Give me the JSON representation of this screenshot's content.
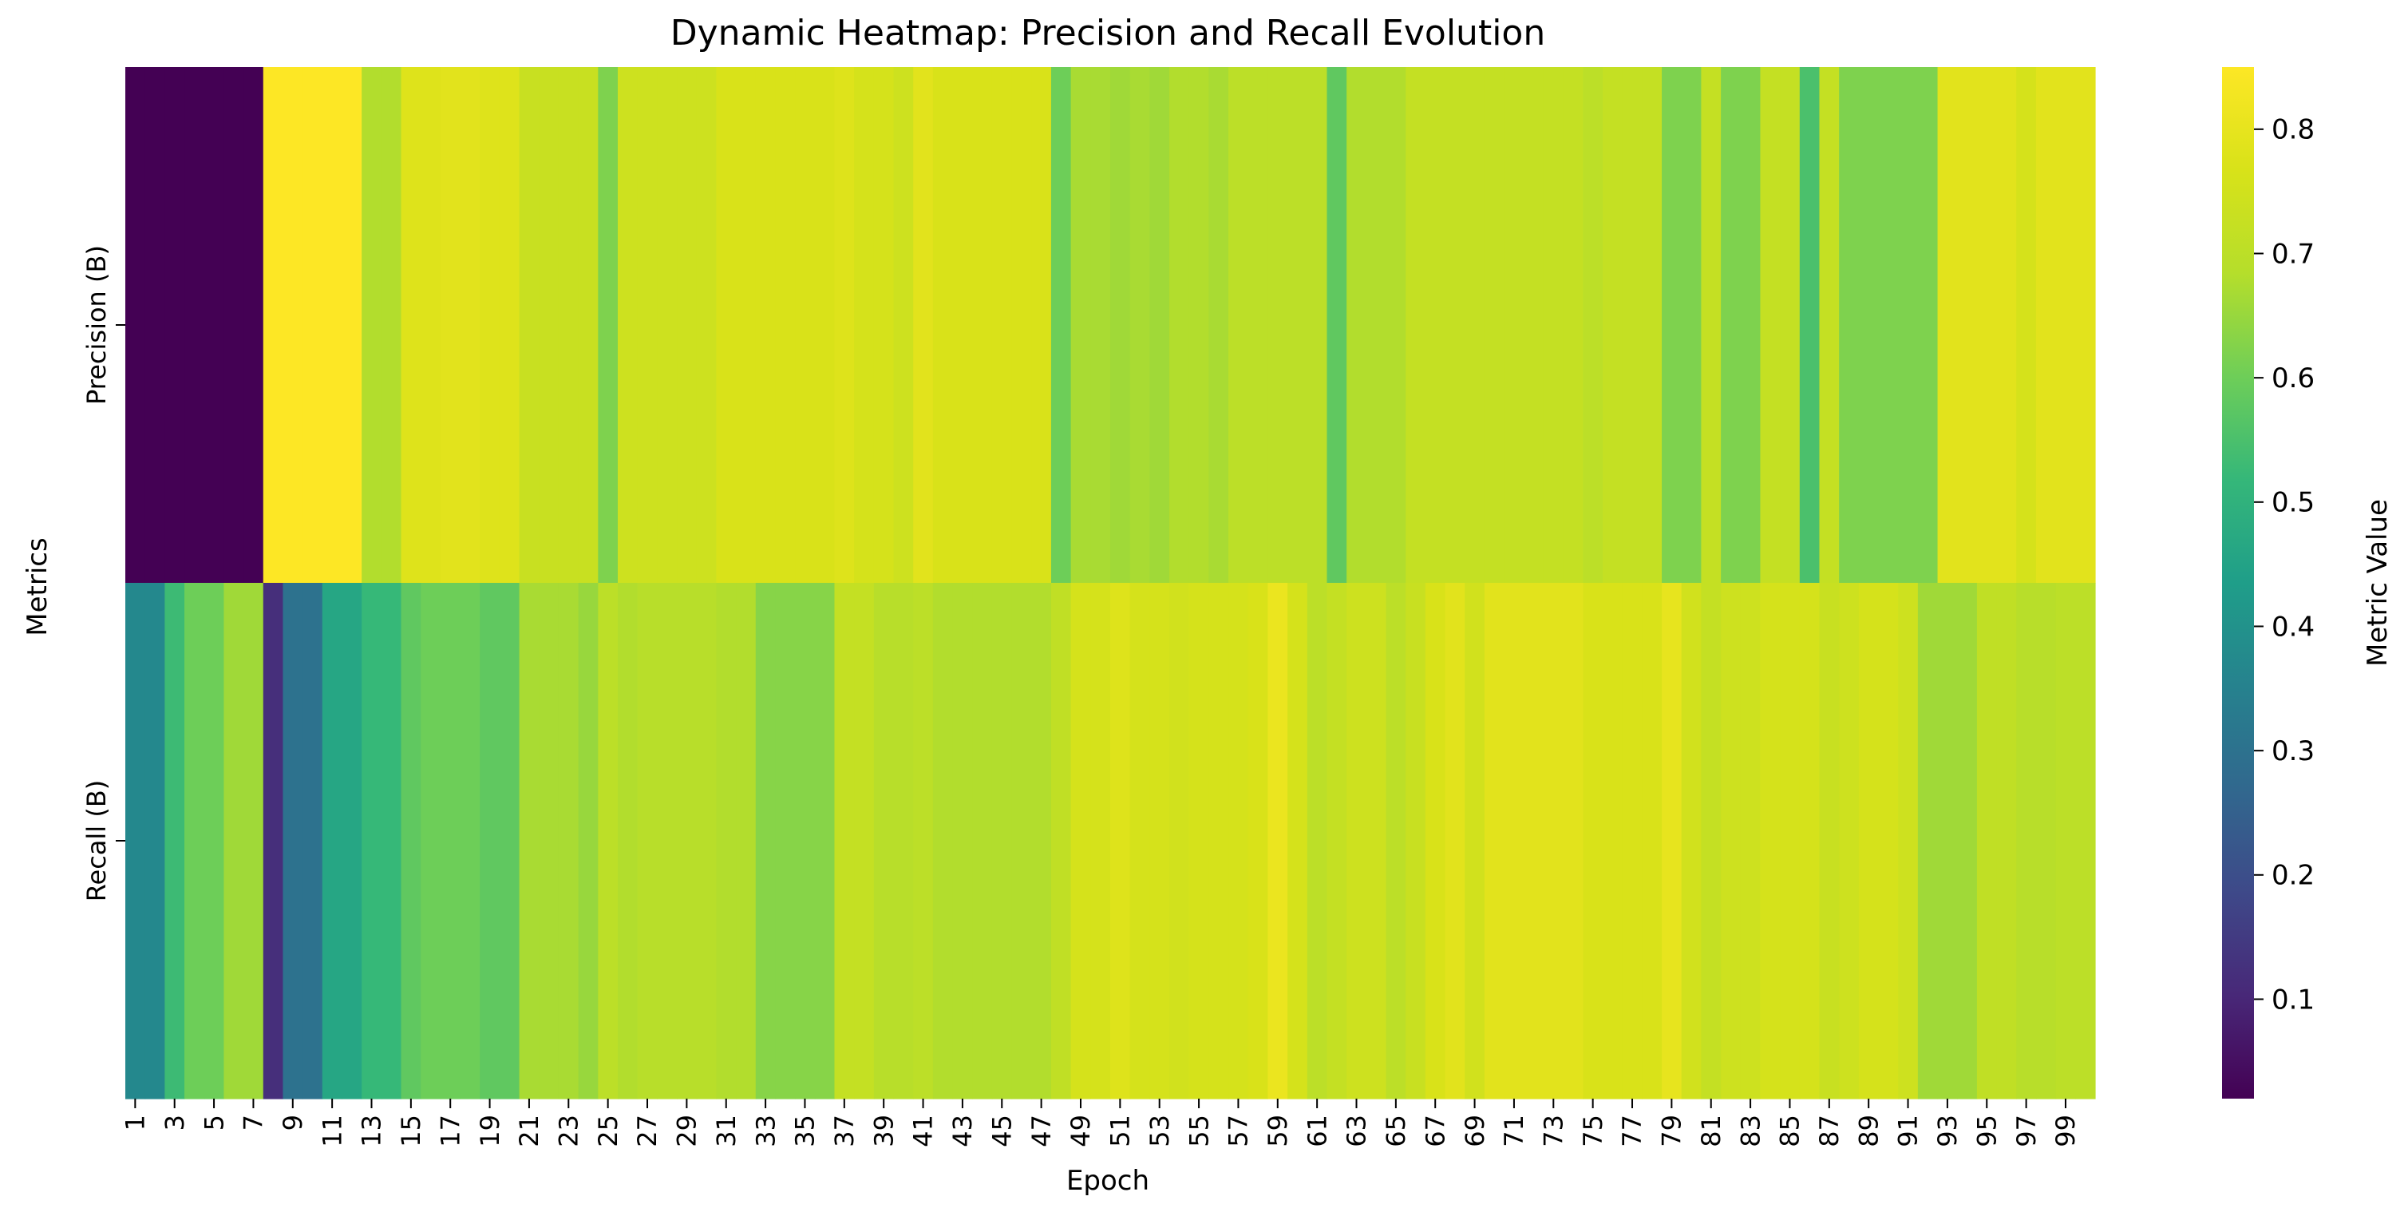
{
  "chart_data": {
    "type": "heatmap",
    "title": "Dynamic Heatmap: Precision and Recall Evolution",
    "xlabel": "Epoch",
    "ylabel": "Metrics",
    "rows": [
      "Precision (B)",
      "Recall (B)"
    ],
    "x": [
      1,
      2,
      3,
      4,
      5,
      6,
      7,
      8,
      9,
      10,
      11,
      12,
      13,
      14,
      15,
      16,
      17,
      18,
      19,
      20,
      21,
      22,
      23,
      24,
      25,
      26,
      27,
      28,
      29,
      30,
      31,
      32,
      33,
      34,
      35,
      36,
      37,
      38,
      39,
      40,
      41,
      42,
      43,
      44,
      45,
      46,
      47,
      48,
      49,
      50,
      51,
      52,
      53,
      54,
      55,
      56,
      57,
      58,
      59,
      60,
      61,
      62,
      63,
      64,
      65,
      66,
      67,
      68,
      69,
      70,
      71,
      72,
      73,
      74,
      75,
      76,
      77,
      78,
      79,
      80,
      81,
      82,
      83,
      84,
      85,
      86,
      87,
      88,
      89,
      90,
      91,
      92,
      93,
      94,
      95,
      96,
      97,
      98,
      99,
      100
    ],
    "xticks": [
      "1",
      "3",
      "5",
      "7",
      "9",
      "11",
      "13",
      "15",
      "17",
      "19",
      "21",
      "23",
      "25",
      "27",
      "29",
      "31",
      "33",
      "35",
      "37",
      "39",
      "41",
      "43",
      "45",
      "47",
      "49",
      "51",
      "53",
      "55",
      "57",
      "59",
      "61",
      "63",
      "65",
      "67",
      "69",
      "71",
      "73",
      "75",
      "77",
      "79",
      "81",
      "83",
      "85",
      "87",
      "89",
      "91",
      "93",
      "95",
      "97",
      "99"
    ],
    "values": [
      [
        0.02,
        0.02,
        0.02,
        0.02,
        0.02,
        0.02,
        0.02,
        0.85,
        0.85,
        0.85,
        0.85,
        0.85,
        0.68,
        0.68,
        0.78,
        0.78,
        0.79,
        0.79,
        0.78,
        0.78,
        0.73,
        0.73,
        0.73,
        0.73,
        0.62,
        0.74,
        0.74,
        0.74,
        0.74,
        0.74,
        0.77,
        0.77,
        0.77,
        0.77,
        0.77,
        0.77,
        0.78,
        0.76,
        0.76,
        0.74,
        0.79,
        0.77,
        0.77,
        0.77,
        0.77,
        0.77,
        0.77,
        0.6,
        0.67,
        0.67,
        0.66,
        0.67,
        0.66,
        0.68,
        0.68,
        0.67,
        0.7,
        0.7,
        0.7,
        0.7,
        0.7,
        0.58,
        0.68,
        0.68,
        0.68,
        0.72,
        0.72,
        0.72,
        0.72,
        0.72,
        0.72,
        0.72,
        0.72,
        0.72,
        0.7,
        0.72,
        0.72,
        0.72,
        0.62,
        0.62,
        0.72,
        0.62,
        0.62,
        0.72,
        0.72,
        0.55,
        0.72,
        0.62,
        0.62,
        0.62,
        0.62,
        0.62,
        0.79,
        0.79,
        0.79,
        0.79,
        0.76,
        0.79,
        0.79,
        0.79
      ],
      [
        0.37,
        0.37,
        0.53,
        0.6,
        0.6,
        0.66,
        0.66,
        0.12,
        0.3,
        0.3,
        0.46,
        0.46,
        0.52,
        0.52,
        0.58,
        0.6,
        0.6,
        0.6,
        0.58,
        0.58,
        0.67,
        0.67,
        0.67,
        0.65,
        0.7,
        0.68,
        0.69,
        0.69,
        0.69,
        0.69,
        0.68,
        0.68,
        0.63,
        0.63,
        0.63,
        0.63,
        0.72,
        0.72,
        0.69,
        0.69,
        0.7,
        0.68,
        0.68,
        0.68,
        0.68,
        0.68,
        0.68,
        0.71,
        0.76,
        0.76,
        0.78,
        0.76,
        0.76,
        0.75,
        0.76,
        0.76,
        0.76,
        0.77,
        0.81,
        0.76,
        0.7,
        0.72,
        0.74,
        0.74,
        0.7,
        0.73,
        0.77,
        0.79,
        0.75,
        0.79,
        0.79,
        0.79,
        0.79,
        0.79,
        0.77,
        0.77,
        0.77,
        0.77,
        0.8,
        0.75,
        0.72,
        0.74,
        0.74,
        0.76,
        0.76,
        0.76,
        0.73,
        0.74,
        0.76,
        0.76,
        0.74,
        0.66,
        0.66,
        0.66,
        0.71,
        0.71,
        0.69,
        0.69,
        0.7,
        0.7
      ]
    ],
    "colorbar": {
      "label": "Metric Value",
      "min": 0.02,
      "max": 0.85,
      "ticks": [
        "0.1",
        "0.2",
        "0.3",
        "0.4",
        "0.5",
        "0.6",
        "0.7",
        "0.8"
      ],
      "colormap": "viridis"
    }
  }
}
